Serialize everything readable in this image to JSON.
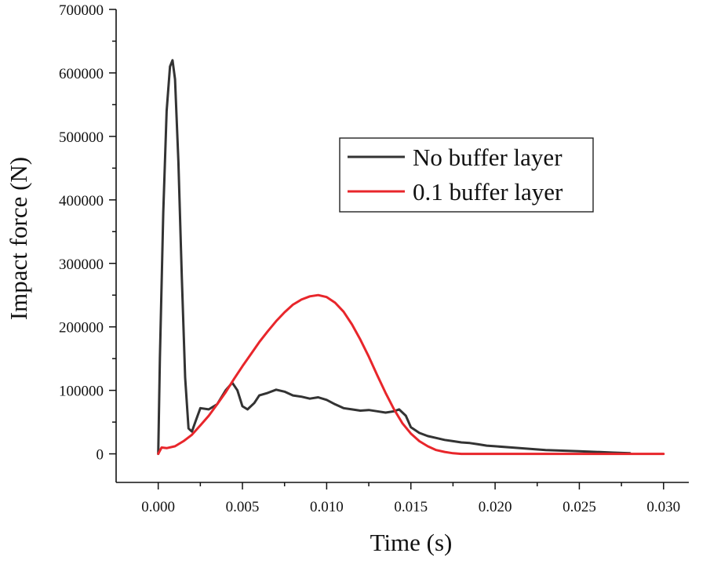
{
  "chart_data": {
    "type": "line",
    "title": "",
    "xlabel": "Time (s)",
    "ylabel": "Impact force (N)",
    "xlim": [
      -0.0025,
      0.0315
    ],
    "ylim": [
      -45000,
      700000
    ],
    "xticks": [
      0.0,
      0.005,
      0.01,
      0.015,
      0.02,
      0.025,
      0.03
    ],
    "xtick_labels": [
      "0.000",
      "0.005",
      "0.010",
      "0.015",
      "0.020",
      "0.025",
      "0.030"
    ],
    "yticks": [
      0,
      100000,
      200000,
      300000,
      400000,
      500000,
      600000,
      700000
    ],
    "ytick_labels": [
      "0",
      "100000",
      "200000",
      "300000",
      "400000",
      "500000",
      "600000",
      "700000"
    ],
    "grid": false,
    "legend_position": "center-right",
    "series": [
      {
        "name": "No buffer layer",
        "color": "#333333",
        "x": [
          0.0,
          0.0001,
          0.0003,
          0.0005,
          0.0007,
          0.00085,
          0.001,
          0.0012,
          0.0014,
          0.0016,
          0.0018,
          0.002,
          0.0022,
          0.0025,
          0.003,
          0.0035,
          0.004,
          0.0044,
          0.0047,
          0.005,
          0.0053,
          0.0057,
          0.006,
          0.0065,
          0.007,
          0.0075,
          0.008,
          0.0085,
          0.009,
          0.0095,
          0.01,
          0.0105,
          0.011,
          0.0115,
          0.012,
          0.0125,
          0.013,
          0.0135,
          0.014,
          0.0143,
          0.0147,
          0.015,
          0.0155,
          0.016,
          0.0165,
          0.017,
          0.0175,
          0.018,
          0.0185,
          0.019,
          0.0195,
          0.02,
          0.021,
          0.022,
          0.023,
          0.024,
          0.025,
          0.026,
          0.027,
          0.028
        ],
        "y": [
          0,
          150000,
          380000,
          540000,
          610000,
          620000,
          590000,
          460000,
          280000,
          120000,
          40000,
          35000,
          50000,
          72000,
          70000,
          78000,
          100000,
          112000,
          100000,
          75000,
          70000,
          80000,
          92000,
          96000,
          101000,
          98000,
          92000,
          90000,
          87000,
          89000,
          85000,
          78000,
          72000,
          70000,
          68000,
          69000,
          67000,
          65000,
          67000,
          70000,
          60000,
          42000,
          33000,
          28000,
          25000,
          22000,
          20000,
          18000,
          17000,
          15000,
          13000,
          12000,
          10000,
          8000,
          6000,
          5000,
          4000,
          3000,
          2000,
          1000
        ]
      },
      {
        "name": "0.1 buffer layer",
        "color": "#e8262b",
        "x": [
          0.0,
          0.0002,
          0.0005,
          0.001,
          0.0015,
          0.002,
          0.0025,
          0.003,
          0.0035,
          0.004,
          0.0045,
          0.005,
          0.0055,
          0.006,
          0.0065,
          0.007,
          0.0075,
          0.008,
          0.0085,
          0.009,
          0.0095,
          0.01,
          0.0105,
          0.011,
          0.0115,
          0.012,
          0.0125,
          0.013,
          0.0135,
          0.014,
          0.0145,
          0.015,
          0.0155,
          0.016,
          0.0165,
          0.017,
          0.0175,
          0.018,
          0.019,
          0.02,
          0.022,
          0.025,
          0.028,
          0.03
        ],
        "y": [
          0,
          10000,
          9000,
          12000,
          20000,
          30000,
          45000,
          60000,
          78000,
          97000,
          118000,
          138000,
          157000,
          176000,
          193000,
          209000,
          223000,
          235000,
          243000,
          248000,
          250000,
          247000,
          238000,
          224000,
          204000,
          180000,
          153000,
          124000,
          96000,
          70000,
          48000,
          32000,
          20000,
          12000,
          6000,
          3000,
          1000,
          0,
          0,
          0,
          0,
          0,
          0,
          0
        ]
      }
    ]
  }
}
